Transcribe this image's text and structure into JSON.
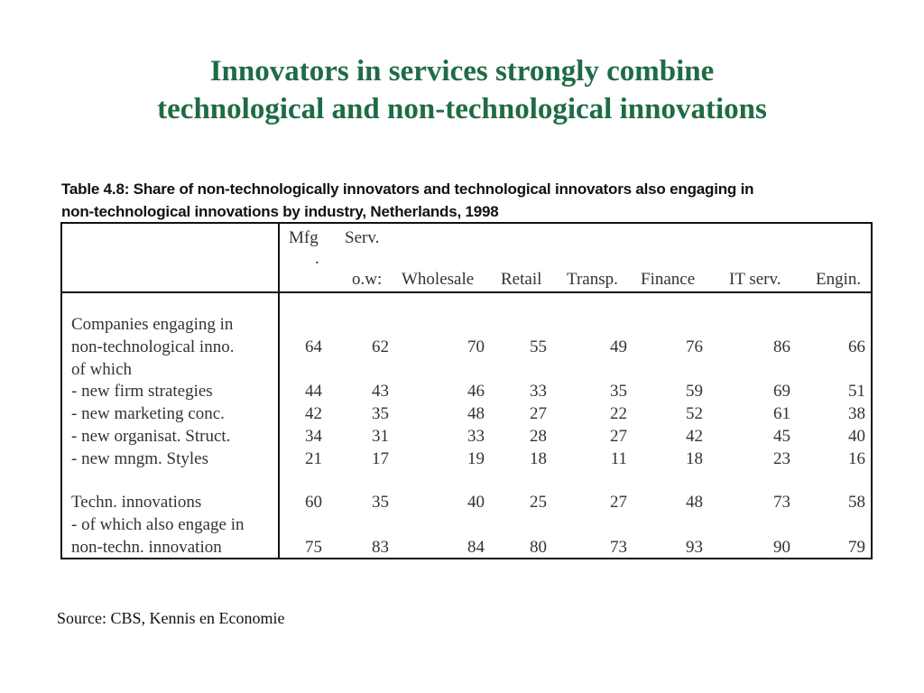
{
  "slide": {
    "title_line1": "Innovators in services strongly combine",
    "title_line2": "technological and non-technological innovations",
    "source": "Source: CBS, Kennis en Economie"
  },
  "table": {
    "caption_line1": "Table 4.8: Share of non-technologically innovators and technological innovators also engaging in",
    "caption_line2": "non-technological innovations by industry, Netherlands, 1998",
    "header": {
      "mfg": "Mfg",
      "mfg_dot": ".",
      "serv": "Serv.",
      "ow": "o.w:",
      "wholesale": "Wholesale",
      "retail": "Retail",
      "transp": "Transp.",
      "finance": "Finance",
      "it_serv": "IT serv.",
      "engin": "Engin."
    },
    "labels": {
      "companies_1": "Companies engaging in",
      "companies_2": "non-technological inno.",
      "of_which": "of which",
      "firm_strategies": "- new firm strategies",
      "marketing": "- new marketing conc.",
      "organisat": "- new organisat. Struct.",
      "mngm": "- new mngm. Styles",
      "techn": "Techn. innovations",
      "also_1": "- of which also engage in",
      "also_2": "non-techn. innovation"
    },
    "values": {
      "companies": [
        "64",
        "62",
        "70",
        "55",
        "49",
        "76",
        "86",
        "66"
      ],
      "firm_strategies": [
        "44",
        "43",
        "46",
        "33",
        "35",
        "59",
        "69",
        "51"
      ],
      "marketing": [
        "42",
        "35",
        "48",
        "27",
        "22",
        "52",
        "61",
        "38"
      ],
      "organisat": [
        "34",
        "31",
        "33",
        "28",
        "27",
        "42",
        "45",
        "40"
      ],
      "mngm": [
        "21",
        "17",
        "19",
        "18",
        "11",
        "18",
        "23",
        "16"
      ],
      "techn": [
        "60",
        "35",
        "40",
        "25",
        "27",
        "48",
        "73",
        "58"
      ],
      "also": [
        "75",
        "83",
        "84",
        "80",
        "73",
        "93",
        "90",
        "79"
      ]
    }
  }
}
